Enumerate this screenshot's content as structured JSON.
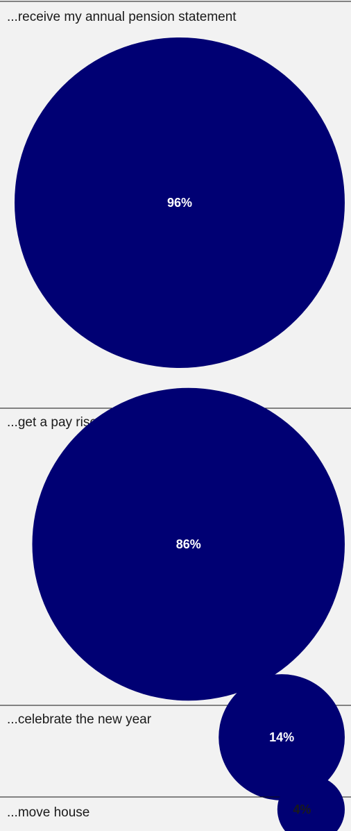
{
  "chart_data": {
    "type": "bubble",
    "title": "",
    "bubble_color": "#000073",
    "categories": [
      "...receive my annual pension statement",
      "...get a pay rise",
      "...celebrate the new year",
      "...move house"
    ],
    "values": [
      96,
      86,
      14,
      4
    ],
    "value_labels": [
      "96%",
      "86%",
      "14%",
      "4%"
    ]
  }
}
